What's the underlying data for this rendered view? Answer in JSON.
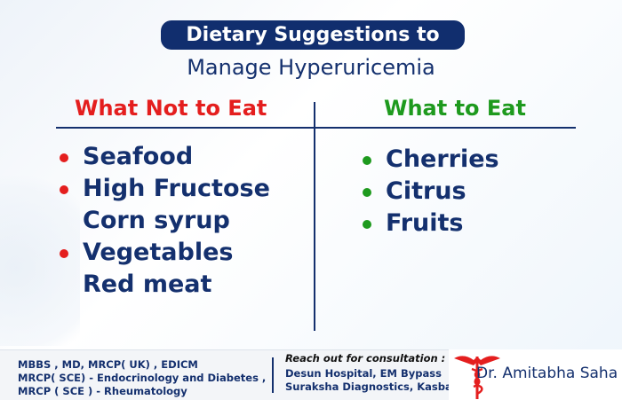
{
  "title": {
    "line1": "Dietary Suggestions to",
    "line2": "Manage Hyperuricemia"
  },
  "avoid": {
    "heading": "What Not to Eat",
    "items": [
      "Seafood",
      "High Fructose",
      "Corn syrup",
      "Vegetables",
      "Red meat"
    ]
  },
  "eat": {
    "heading": "What to Eat",
    "items": [
      "Cherries",
      "Citrus",
      "Fruits"
    ]
  },
  "footer": {
    "credentials": [
      "MBBS , MD, MRCP( UK) , EDICM",
      "MRCP( SCE) - Endocrinology and Diabetes ,",
      "MRCP ( SCE ) - Rheumatology"
    ],
    "reach": "Reach out for consultation :",
    "locations": [
      "Desun Hospital, EM Bypass",
      "Suraksha Diagnostics, Kasba"
    ],
    "doctor": "Dr. Amitabha Saha"
  },
  "colors": {
    "navy": "#112e6e",
    "red": "#e41e1e",
    "green": "#1e9a1e"
  },
  "icons": {
    "logo": "caduceus-icon"
  }
}
